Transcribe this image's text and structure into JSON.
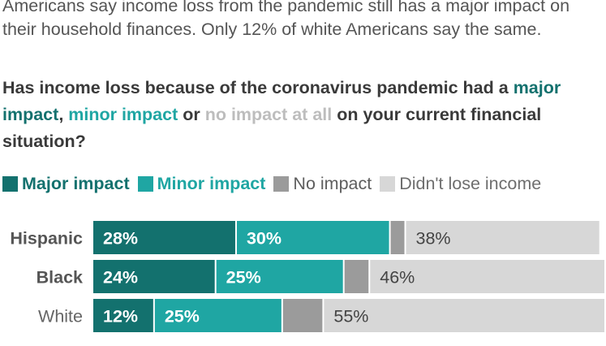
{
  "intro_text": "Americans say income loss from the pandemic still has a major impact on their household finances. Only 12% of white Americans say the same.",
  "question": {
    "part1": "Has income loss because of the coronavirus pandemic had a ",
    "major": "major impact",
    "sep1": ", ",
    "minor": "minor impact",
    "sep2": " or ",
    "none": "no impact at all",
    "part2": " on your current financial situation?"
  },
  "colors": {
    "major": "#13716e",
    "minor": "#1fa6a3",
    "none": "#9b9b9b",
    "didnt": "#d7d7d7",
    "text": "#555555"
  },
  "chart_data": {
    "type": "bar",
    "orientation": "horizontal",
    "stacked": true,
    "categories": [
      "Hispanic",
      "Black",
      "White"
    ],
    "series": [
      {
        "name": "Major impact",
        "values": [
          28,
          24,
          12
        ],
        "labels": [
          "28%",
          "24%",
          "12%"
        ]
      },
      {
        "name": "Minor impact",
        "values": [
          30,
          25,
          25
        ],
        "labels": [
          "30%",
          "25%",
          "25%"
        ]
      },
      {
        "name": "No impact",
        "values": [
          3,
          5,
          8
        ],
        "labels": [
          "",
          "",
          ""
        ]
      },
      {
        "name": "Didn't lose income",
        "values": [
          38,
          46,
          55
        ],
        "labels": [
          "38%",
          "46%",
          "55%"
        ]
      }
    ],
    "xlim": [
      0,
      100
    ],
    "legend_position": "top-left"
  }
}
